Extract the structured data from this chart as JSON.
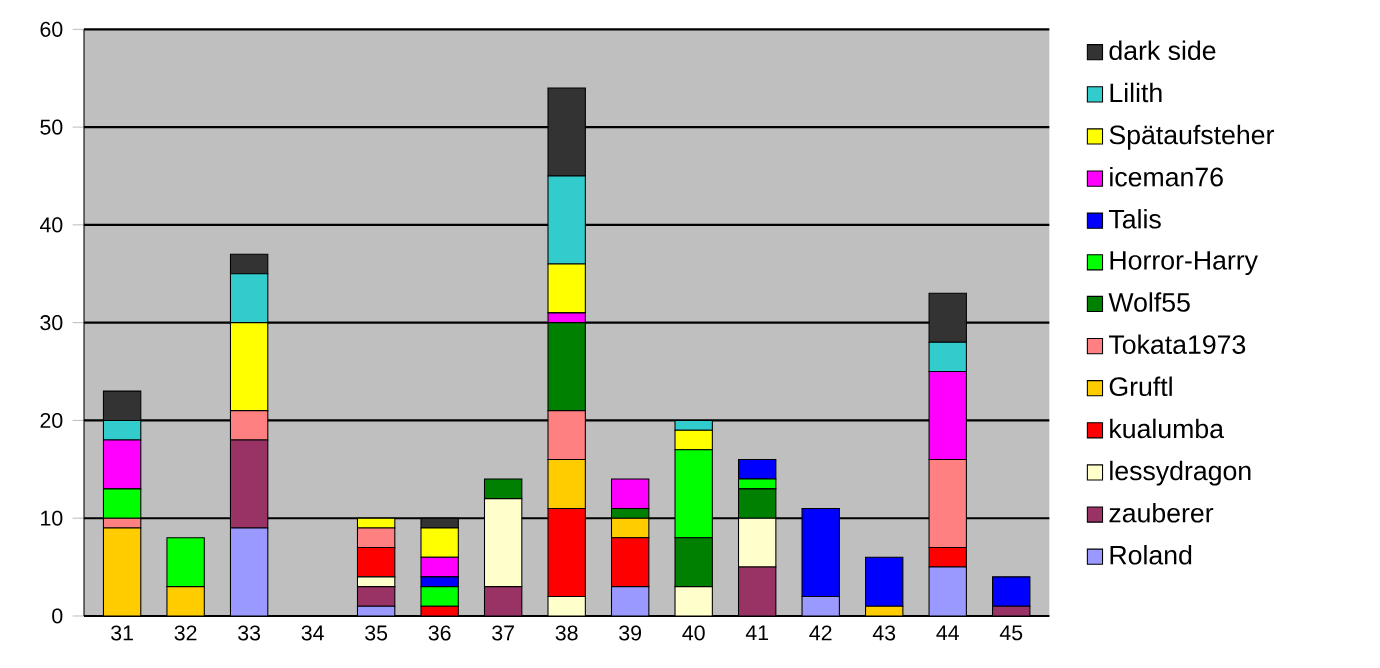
{
  "chart_data": {
    "type": "bar",
    "stacked": true,
    "grid": "y",
    "legend": "right",
    "ylim": [
      0,
      60
    ],
    "yticks": [
      0,
      10,
      20,
      30,
      40,
      50,
      60
    ],
    "categories": [
      "31",
      "32",
      "33",
      "34",
      "35",
      "36",
      "37",
      "38",
      "39",
      "40",
      "41",
      "42",
      "43",
      "44",
      "45"
    ],
    "series": [
      {
        "name": "Roland",
        "color": "#9999ff",
        "values": [
          0,
          0,
          9,
          0,
          1,
          0,
          0,
          0,
          3,
          0,
          0,
          2,
          0,
          5,
          0
        ]
      },
      {
        "name": "zauberer",
        "color": "#993366",
        "values": [
          0,
          0,
          9,
          0,
          2,
          0,
          3,
          0,
          0,
          0,
          5,
          0,
          0,
          0,
          1
        ]
      },
      {
        "name": "lessydragon",
        "color": "#ffffcc",
        "values": [
          0,
          0,
          0,
          0,
          1,
          0,
          9,
          2,
          0,
          3,
          5,
          0,
          0,
          0,
          0
        ]
      },
      {
        "name": "kualumba",
        "color": "#ff0000",
        "values": [
          0,
          0,
          0,
          0,
          3,
          1,
          0,
          9,
          5,
          0,
          0,
          0,
          0,
          2,
          0
        ]
      },
      {
        "name": "Gruftl",
        "color": "#ffcc00",
        "values": [
          9,
          3,
          0,
          0,
          0,
          0,
          0,
          5,
          2,
          0,
          0,
          0,
          1,
          0,
          0
        ]
      },
      {
        "name": "Tokata1973",
        "color": "#ff8080",
        "values": [
          1,
          0,
          3,
          0,
          2,
          0,
          0,
          5,
          0,
          0,
          0,
          0,
          0,
          9,
          0
        ]
      },
      {
        "name": "Wolf55",
        "color": "#008000",
        "values": [
          0,
          0,
          0,
          0,
          0,
          0,
          2,
          9,
          1,
          5,
          3,
          0,
          0,
          0,
          0
        ]
      },
      {
        "name": "Horror-Harry",
        "color": "#00ff00",
        "values": [
          3,
          5,
          0,
          0,
          0,
          2,
          0,
          0,
          0,
          9,
          1,
          0,
          0,
          0,
          0
        ]
      },
      {
        "name": "Talis",
        "color": "#0000ff",
        "values": [
          0,
          0,
          0,
          0,
          0,
          1,
          0,
          0,
          0,
          0,
          2,
          9,
          5,
          0,
          3
        ]
      },
      {
        "name": "iceman76",
        "color": "#ff00ff",
        "values": [
          5,
          0,
          0,
          0,
          0,
          2,
          0,
          1,
          3,
          0,
          0,
          0,
          0,
          9,
          0
        ]
      },
      {
        "name": "Spätaufsteher",
        "color": "#ffff00",
        "values": [
          0,
          0,
          9,
          0,
          1,
          3,
          0,
          5,
          0,
          2,
          0,
          0,
          0,
          0,
          0
        ]
      },
      {
        "name": "Lilith",
        "color": "#33cccc",
        "values": [
          2,
          0,
          5,
          0,
          0,
          0,
          0,
          9,
          0,
          1,
          0,
          0,
          0,
          3,
          0
        ]
      },
      {
        "name": "dark side",
        "color": "#333333",
        "values": [
          3,
          0,
          2,
          0,
          0,
          1,
          0,
          9,
          0,
          0,
          0,
          0,
          0,
          5,
          0
        ]
      }
    ]
  }
}
